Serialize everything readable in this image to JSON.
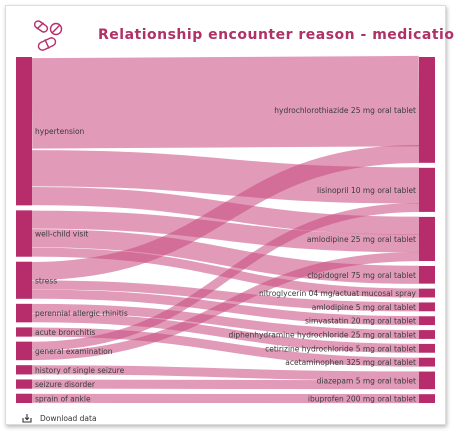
{
  "header": {
    "title": "Relationship encounter reason - medication",
    "logo_icon": "pills-icon"
  },
  "footer": {
    "download_label": "Download data",
    "download_icon": "download-icon"
  },
  "colors": {
    "node": "#b72d6b",
    "link": "#c9497f",
    "title": "#b03166"
  },
  "chart_data": {
    "type": "sankey",
    "title": "Relationship encounter reason - medication",
    "sources": [
      "hypertension",
      "well-child visit",
      "stress",
      "perennial allergic rhinitis",
      "acute bronchitis",
      "general examination",
      "history of single seizure",
      "seizure disorder",
      "sprain of ankle"
    ],
    "targets": [
      "hydrochlorothiazide 25 mg oral tablet",
      "lisinopril 10 mg oral tablet",
      "amlodipine 25 mg oral tablet",
      "clopidogrel 75 mg oral tablet",
      "nitroglycerin 04 mg/actuat mucosal spray",
      "amlodipine 5 mg oral tablet",
      "simvastatin 20 mg oral tablet",
      "diphenhydramine hydrochloride 25 mg oral tablet",
      "cetirizine hydrochloride 5 mg oral tablet",
      "acetaminophen 325 mg oral tablet",
      "diazepam 5 mg oral tablet",
      "ibuprofen 200 mg oral tablet"
    ],
    "links": [
      {
        "source": "hypertension",
        "target": "hydrochlorothiazide 25 mg oral tablet",
        "value": 5
      },
      {
        "source": "hypertension",
        "target": "lisinopril 10 mg oral tablet",
        "value": 2
      },
      {
        "source": "hypertension",
        "target": "amlodipine 25 mg oral tablet",
        "value": 1
      },
      {
        "source": "well-child visit",
        "target": "amlodipine 25 mg oral tablet",
        "value": 1
      },
      {
        "source": "well-child visit",
        "target": "clopidogrel 75 mg oral tablet",
        "value": 1
      },
      {
        "source": "well-child visit",
        "target": "nitroglycerin 04 mg/actuat mucosal spray",
        "value": 0.5
      },
      {
        "source": "stress",
        "target": "hydrochlorothiazide 25 mg oral tablet",
        "value": 1
      },
      {
        "source": "stress",
        "target": "amlodipine 5 mg oral tablet",
        "value": 0.5
      },
      {
        "source": "stress",
        "target": "simvastatin 20 mg oral tablet",
        "value": 0.5
      },
      {
        "source": "perennial allergic rhinitis",
        "target": "diphenhydramine hydrochloride 25 mg oral tablet",
        "value": 0.5
      },
      {
        "source": "perennial allergic rhinitis",
        "target": "cetirizine hydrochloride 5 mg oral tablet",
        "value": 0.5
      },
      {
        "source": "acute bronchitis",
        "target": "acetaminophen 325 mg oral tablet",
        "value": 0.5
      },
      {
        "source": "general examination",
        "target": "lisinopril 10 mg oral tablet",
        "value": 0.5
      },
      {
        "source": "general examination",
        "target": "amlodipine 25 mg oral tablet",
        "value": 0.5
      },
      {
        "source": "history of single seizure",
        "target": "diazepam 5 mg oral tablet",
        "value": 0.5
      },
      {
        "source": "seizure disorder",
        "target": "diazepam 5 mg oral tablet",
        "value": 0.5
      },
      {
        "source": "sprain of ankle",
        "target": "ibuprofen 200 mg oral tablet",
        "value": 0.5
      }
    ]
  }
}
